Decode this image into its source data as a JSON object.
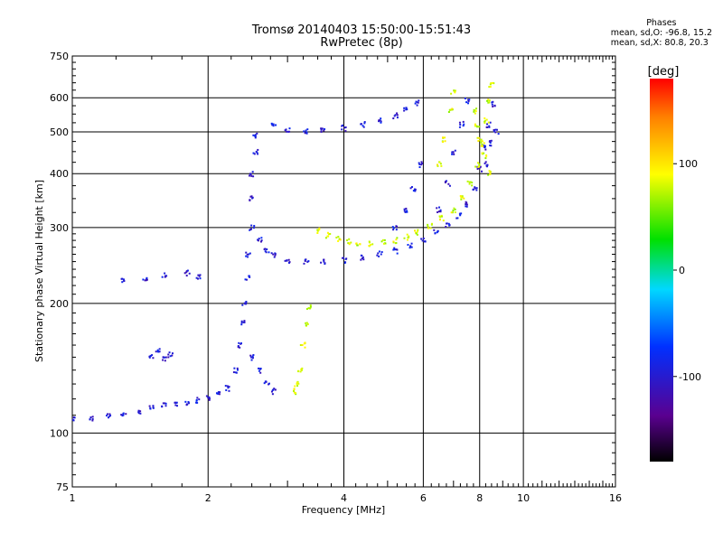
{
  "header": {
    "title": "Tromsø 20140403 15:50:00-15:51:43",
    "subtitle": "RwPretec (8p)"
  },
  "phase_stats": {
    "title": "Phases",
    "line_o": "mean, sd,O: -96.8, 15.2",
    "line_x": "mean, sd,X: 80.8, 20.3"
  },
  "colorbar": {
    "unit_label": "[deg]",
    "range": [
      -180,
      180
    ],
    "ticks": [
      "100",
      "0",
      "-100"
    ],
    "tick_values": [
      100,
      0,
      -100
    ]
  },
  "chart_data": {
    "type": "scatter",
    "title": "Tromsø 20140403 15:50:00-15:51:43",
    "subtitle": "RwPretec (8p)",
    "xlabel": "Frequency [MHz]",
    "ylabel": "Stationary phase Virtual Height [km]",
    "xscale": "log",
    "yscale": "log",
    "xlim": [
      1,
      16
    ],
    "ylim": [
      75,
      750
    ],
    "x_ticks": [
      1,
      2,
      4,
      6,
      8,
      10,
      16
    ],
    "x_tick_labels": [
      "1",
      "2",
      "4",
      "6",
      "8",
      "10",
      "16"
    ],
    "y_ticks": [
      75,
      100,
      200,
      300,
      400,
      500,
      600,
      750
    ],
    "y_tick_labels": [
      "75",
      "100",
      "200",
      "300",
      "400",
      "500",
      "600",
      "750"
    ],
    "grid": true,
    "color_encoding": "phase (deg)",
    "series": [
      {
        "mode": "O",
        "phase_mean": -96.8,
        "points": [
          [
            1.0,
            108
          ],
          [
            1.1,
            108
          ],
          [
            1.2,
            110
          ],
          [
            1.3,
            111
          ],
          [
            1.4,
            112
          ],
          [
            1.5,
            114
          ],
          [
            1.6,
            116
          ],
          [
            1.7,
            117
          ],
          [
            1.8,
            118
          ],
          [
            1.9,
            119
          ],
          [
            2.0,
            121
          ],
          [
            2.1,
            124
          ],
          [
            2.2,
            127
          ],
          [
            2.3,
            140
          ],
          [
            2.35,
            160
          ],
          [
            2.4,
            180
          ],
          [
            2.4,
            200
          ],
          [
            2.45,
            230
          ],
          [
            2.45,
            260
          ],
          [
            2.5,
            300
          ],
          [
            2.5,
            350
          ],
          [
            2.5,
            400
          ],
          [
            2.55,
            450
          ],
          [
            2.55,
            490
          ],
          [
            2.6,
            280
          ],
          [
            2.7,
            265
          ],
          [
            2.8,
            258
          ],
          [
            3.0,
            252
          ],
          [
            3.3,
            250
          ],
          [
            3.6,
            250
          ],
          [
            4.0,
            252
          ],
          [
            4.4,
            255
          ],
          [
            4.8,
            260
          ],
          [
            5.2,
            265
          ],
          [
            5.6,
            272
          ],
          [
            6.0,
            282
          ],
          [
            6.4,
            292
          ],
          [
            6.8,
            305
          ],
          [
            7.2,
            320
          ],
          [
            7.5,
            340
          ],
          [
            7.8,
            370
          ],
          [
            8.0,
            410
          ],
          [
            8.2,
            460
          ],
          [
            8.4,
            520
          ],
          [
            8.6,
            580
          ],
          [
            2.8,
            520
          ],
          [
            3.0,
            505
          ],
          [
            3.3,
            500
          ],
          [
            3.6,
            505
          ],
          [
            4.0,
            510
          ],
          [
            4.4,
            520
          ],
          [
            4.8,
            530
          ],
          [
            5.2,
            545
          ],
          [
            5.5,
            565
          ],
          [
            5.8,
            585
          ],
          [
            1.3,
            225
          ],
          [
            1.45,
            228
          ],
          [
            1.6,
            232
          ],
          [
            1.8,
            235
          ],
          [
            1.9,
            230
          ],
          [
            1.5,
            150
          ],
          [
            1.55,
            155
          ],
          [
            1.6,
            148
          ],
          [
            1.65,
            152
          ],
          [
            5.2,
            300
          ],
          [
            5.5,
            330
          ],
          [
            5.7,
            370
          ],
          [
            5.9,
            420
          ],
          [
            6.5,
            330
          ],
          [
            6.8,
            380
          ],
          [
            7.0,
            450
          ],
          [
            7.3,
            520
          ],
          [
            7.5,
            590
          ],
          [
            8.3,
            420
          ],
          [
            8.5,
            470
          ],
          [
            8.7,
            500
          ],
          [
            2.5,
            150
          ],
          [
            2.6,
            140
          ],
          [
            2.7,
            130
          ],
          [
            2.8,
            125
          ]
        ]
      },
      {
        "mode": "X",
        "phase_mean": 80.8,
        "points": [
          [
            3.5,
            295
          ],
          [
            3.7,
            288
          ],
          [
            3.9,
            282
          ],
          [
            4.1,
            278
          ],
          [
            4.3,
            276
          ],
          [
            4.6,
            275
          ],
          [
            4.9,
            277
          ],
          [
            5.2,
            280
          ],
          [
            5.5,
            285
          ],
          [
            5.8,
            292
          ],
          [
            6.2,
            302
          ],
          [
            6.6,
            315
          ],
          [
            7.0,
            330
          ],
          [
            7.3,
            350
          ],
          [
            7.6,
            380
          ],
          [
            7.9,
            420
          ],
          [
            8.1,
            470
          ],
          [
            8.3,
            530
          ],
          [
            8.4,
            590
          ],
          [
            8.5,
            640
          ],
          [
            3.1,
            125
          ],
          [
            3.15,
            130
          ],
          [
            3.2,
            140
          ],
          [
            3.25,
            160
          ],
          [
            3.3,
            180
          ],
          [
            3.35,
            195
          ],
          [
            6.5,
            420
          ],
          [
            6.7,
            480
          ],
          [
            6.9,
            560
          ],
          [
            7.0,
            620
          ],
          [
            7.8,
            560
          ],
          [
            7.9,
            520
          ],
          [
            8.0,
            480
          ],
          [
            8.2,
            440
          ],
          [
            8.4,
            400
          ]
        ]
      }
    ]
  }
}
